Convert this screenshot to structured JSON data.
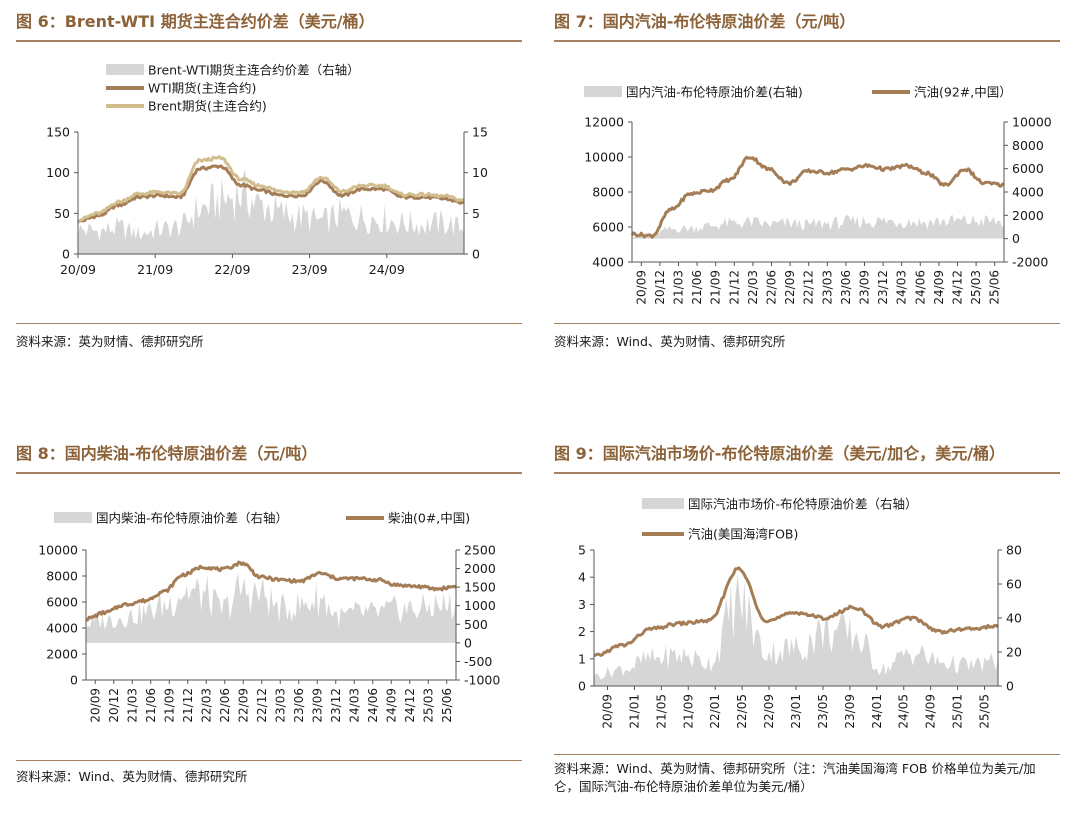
{
  "panels": [
    {
      "title": "图 6：Brent-WTI 期货主连合约价差（美元/桶）",
      "source": "资料来源：英为财情、德邦研究所",
      "chart_data": {
        "type": "line",
        "legend": [
          "Brent-WTI期货主连合约价差（右轴）",
          "WTI期货(主连合约)",
          "Brent期货(主连合约)"
        ],
        "x_ticks": [
          "20/09",
          "21/09",
          "22/09",
          "23/09",
          "24/09"
        ],
        "left_ticks": [
          "0",
          "50",
          "100",
          "150"
        ],
        "right_ticks": [
          "0",
          "5",
          "10",
          "15"
        ],
        "ylim": [
          0,
          150
        ],
        "y2lim": [
          0,
          15
        ],
        "x": [
          "20/09",
          "20/12",
          "21/03",
          "21/06",
          "21/09",
          "21/12",
          "22/03",
          "22/06",
          "22/09",
          "22/12",
          "23/03",
          "23/06",
          "23/09",
          "23/12",
          "24/03",
          "24/06",
          "24/09",
          "24/12",
          "25/03",
          "25/06"
        ],
        "series": [
          {
            "name": "Brent-WTI期货主连合约价差（右轴）",
            "kind": "area",
            "axis": "right",
            "color": "#d6d6d6",
            "values": [
              3.0,
              2.8,
              3.2,
              2.5,
              3.0,
              3.3,
              5.5,
              6.5,
              7.5,
              6.0,
              5.0,
              4.5,
              4.0,
              4.8,
              4.5,
              4.3,
              3.8,
              3.6,
              3.8,
              3.2
            ]
          },
          {
            "name": "WTI期货(主连合约)",
            "kind": "line",
            "axis": "left",
            "color": "#a47d56",
            "values": [
              40,
              47,
              60,
              70,
              72,
              70,
              105,
              108,
              85,
              78,
              72,
              72,
              90,
              72,
              80,
              80,
              70,
              70,
              68,
              63
            ]
          },
          {
            "name": "Brent期货(主连合约)",
            "kind": "line",
            "axis": "left",
            "color": "#d2bd8f",
            "values": [
              42,
              50,
              64,
              74,
              76,
              74,
              115,
              118,
              92,
              84,
              77,
              76,
              94,
              77,
              84,
              84,
              73,
              73,
              71,
              66
            ]
          }
        ]
      }
    },
    {
      "title": "图 7：国内汽油-布伦特原油价差（元/吨）",
      "source": "资料来源：Wind、英为财情、德邦研究所",
      "chart_data": {
        "type": "line",
        "legend": [
          "国内汽油-布伦特原油价差(右轴)",
          "汽油(92#,中国）"
        ],
        "x_ticks": [
          "20/09",
          "20/12",
          "21/03",
          "21/06",
          "21/09",
          "21/12",
          "22/03",
          "22/06",
          "22/09",
          "22/12",
          "23/03",
          "23/06",
          "23/09",
          "23/12",
          "24/03",
          "24/06",
          "24/09",
          "24/12",
          "25/03",
          "25/06"
        ],
        "left_ticks": [
          "4000",
          "6000",
          "8000",
          "10000",
          "12000"
        ],
        "right_ticks": [
          "-2000",
          "0",
          "2000",
          "4000",
          "6000",
          "8000",
          "10000"
        ],
        "ylim": [
          4000,
          12000
        ],
        "y2lim": [
          -2000,
          10000
        ],
        "series": [
          {
            "name": "国内汽油-布伦特原油价差(右轴)",
            "kind": "area",
            "axis": "right",
            "color": "#d6d6d6",
            "values": [
              200,
              400,
              800,
              900,
              1100,
              1300,
              1400,
              1200,
              1300,
              1200,
              1300,
              1400,
              1500,
              1500,
              1500,
              1400,
              1500,
              1500,
              1500,
              1400
            ]
          },
          {
            "name": "汽油(92#,中国）",
            "kind": "line",
            "axis": "left",
            "color": "#a47d56",
            "values": [
              5600,
              5500,
              7000,
              7900,
              8100,
              8700,
              10000,
              9300,
              8500,
              9200,
              9100,
              9300,
              9500,
              9300,
              9500,
              9100,
              8400,
              9300,
              8500,
              8400
            ]
          }
        ]
      }
    },
    {
      "title": "图 8：国内柴油-布伦特原油价差（元/吨）",
      "source": "资料来源：Wind、英为财情、德邦研究所",
      "chart_data": {
        "type": "line",
        "legend": [
          "国内柴油-布伦特原油价差（右轴）",
          "柴油(0#,中国)"
        ],
        "x_ticks": [
          "20/09",
          "20/12",
          "21/03",
          "21/06",
          "21/09",
          "21/12",
          "22/03",
          "22/06",
          "22/09",
          "22/12",
          "23/03",
          "23/06",
          "23/09",
          "23/12",
          "24/03",
          "24/06",
          "24/09",
          "24/12",
          "25/03",
          "25/06"
        ],
        "left_ticks": [
          "0",
          "2000",
          "4000",
          "6000",
          "8000",
          "10000"
        ],
        "right_ticks": [
          "-1000",
          "-500",
          "0",
          "500",
          "1000",
          "1500",
          "2000",
          "2500"
        ],
        "ylim": [
          0,
          10000
        ],
        "y2lim": [
          -1000,
          2500
        ],
        "series": [
          {
            "name": "国内柴油-布伦特原油价差（右轴）",
            "kind": "area",
            "axis": "right",
            "color": "#d6d6d6",
            "values": [
              500,
              600,
              700,
              800,
              1000,
              1400,
              1300,
              900,
              1400,
              1300,
              900,
              1000,
              1200,
              700,
              800,
              800,
              900,
              900,
              1000,
              1000
            ]
          },
          {
            "name": "柴油(0#,中国)",
            "kind": "line",
            "axis": "left",
            "color": "#a47d56",
            "values": [
              4700,
              5200,
              5800,
              6100,
              6800,
              8100,
              8700,
              8500,
              9000,
              7900,
              7700,
              7600,
              8200,
              7800,
              7800,
              7700,
              7300,
              7200,
              7000,
              7200
            ]
          }
        ]
      }
    },
    {
      "title": "图 9：国际汽油市场价-布伦特原油价差（美元/加仑，美元/桶）",
      "source": "资料来源：Wind、英为财情、德邦研究所（注：汽油美国海湾 FOB 价格单位为美元/加仑，国际汽油-布伦特原油价差单位为美元/桶）",
      "chart_data": {
        "type": "line",
        "legend": [
          "国际汽油市场价-布伦特原油价差（右轴）",
          "汽油(美国海湾FOB)"
        ],
        "x_ticks": [
          "20/09",
          "21/01",
          "21/05",
          "21/09",
          "22/01",
          "22/05",
          "22/09",
          "23/01",
          "23/05",
          "23/09",
          "24/01",
          "24/05",
          "24/09",
          "25/01",
          "25/05"
        ],
        "left_ticks": [
          "0",
          "1",
          "2",
          "3",
          "4",
          "5"
        ],
        "right_ticks": [
          "0",
          "20",
          "40",
          "60",
          "80"
        ],
        "ylim": [
          0,
          5
        ],
        "y2lim": [
          0,
          80
        ],
        "series": [
          {
            "name": "国际汽油市场价-布伦特原油价差（右轴）",
            "kind": "area",
            "axis": "right",
            "color": "#d6d6d6",
            "values": [
              6,
              10,
              16,
              18,
              14,
              50,
              20,
              22,
              32,
              30,
              10,
              20,
              14,
              12,
              14
            ]
          },
          {
            "name": "汽油(美国海湾FOB)",
            "kind": "line",
            "axis": "left",
            "color": "#a47d56",
            "values": [
              1.1,
              1.5,
              2.1,
              2.3,
              2.4,
              4.3,
              2.4,
              2.7,
              2.5,
              2.9,
              2.2,
              2.5,
              2.0,
              2.1,
              2.2
            ]
          }
        ]
      }
    }
  ]
}
